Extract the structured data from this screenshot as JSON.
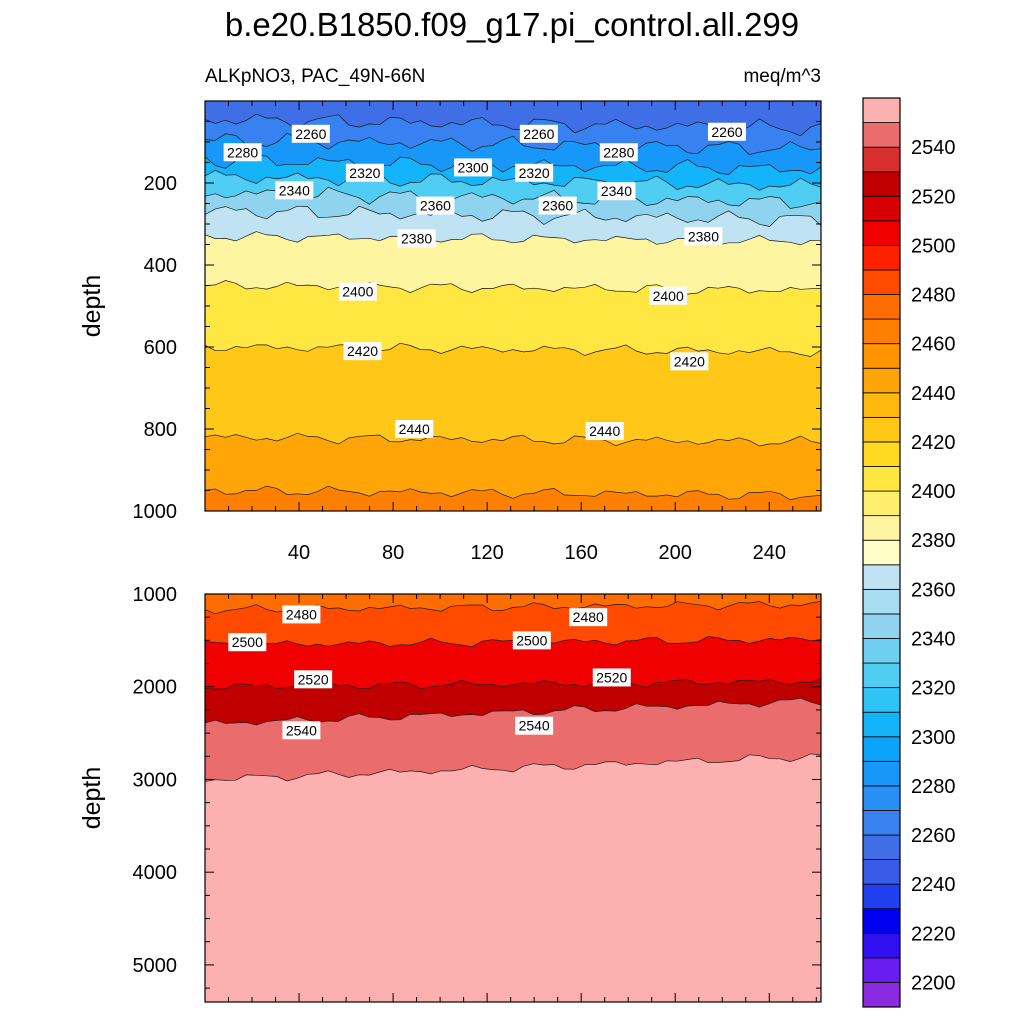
{
  "chart_data": {
    "type": "heatmap",
    "title": "b.e20.B1850.f09_g17.pi_control.all.299",
    "variable": "ALKpNO3, PAC_49N-66N",
    "units": "meq/m^3",
    "panels": [
      {
        "id": "upper",
        "ylabel": "depth",
        "ylim": [
          0,
          1000
        ],
        "y_reversed": true,
        "xlim": [
          0,
          262
        ],
        "xticks": [
          40,
          80,
          120,
          160,
          200,
          240
        ],
        "yticks": [
          200,
          400,
          600,
          800,
          1000
        ],
        "contours": [
          {
            "level": 2260,
            "depth": 45
          },
          {
            "level": 2280,
            "depth": 95
          },
          {
            "level": 2300,
            "depth": 145
          },
          {
            "level": 2320,
            "depth": 185
          },
          {
            "level": 2340,
            "depth": 225
          },
          {
            "level": 2360,
            "depth": 268
          },
          {
            "level": 2380,
            "depth": 330
          },
          {
            "level": 2400,
            "depth": 450
          },
          {
            "level": 2420,
            "depth": 600
          },
          {
            "level": 2440,
            "depth": 820
          },
          {
            "level": 2460,
            "depth": 950
          }
        ],
        "contour_labels": [
          {
            "x": 45,
            "depth": 80,
            "text": "2260"
          },
          {
            "x": 142,
            "depth": 80,
            "text": "2260"
          },
          {
            "x": 222,
            "depth": 75,
            "text": "2260"
          },
          {
            "x": 16,
            "depth": 125,
            "text": "2280"
          },
          {
            "x": 176,
            "depth": 125,
            "text": "2280"
          },
          {
            "x": 114,
            "depth": 162,
            "text": "2300"
          },
          {
            "x": 68,
            "depth": 175,
            "text": "2320"
          },
          {
            "x": 140,
            "depth": 175,
            "text": "2320"
          },
          {
            "x": 38,
            "depth": 218,
            "text": "2340"
          },
          {
            "x": 175,
            "depth": 220,
            "text": "2340"
          },
          {
            "x": 98,
            "depth": 255,
            "text": "2360"
          },
          {
            "x": 150,
            "depth": 255,
            "text": "2360"
          },
          {
            "x": 90,
            "depth": 335,
            "text": "2380"
          },
          {
            "x": 212,
            "depth": 330,
            "text": "2380"
          },
          {
            "x": 65,
            "depth": 465,
            "text": "2400"
          },
          {
            "x": 197,
            "depth": 475,
            "text": "2400"
          },
          {
            "x": 67,
            "depth": 610,
            "text": "2420"
          },
          {
            "x": 206,
            "depth": 635,
            "text": "2420"
          },
          {
            "x": 89,
            "depth": 800,
            "text": "2440"
          },
          {
            "x": 170,
            "depth": 805,
            "text": "2440"
          }
        ]
      },
      {
        "id": "lower",
        "ylabel": "depth",
        "ylim": [
          1000,
          5400
        ],
        "y_reversed": true,
        "xlim": [
          0,
          262
        ],
        "yticks": [
          1000,
          2000,
          3000,
          4000,
          5000
        ],
        "contours": [
          {
            "level": 2480,
            "depth": 1170
          },
          {
            "level": 2500,
            "depth": 1550
          },
          {
            "level": 2520,
            "depth": 2000
          },
          {
            "level": 2540,
            "depth": 2400
          },
          {
            "level": 2550,
            "depth": 3000
          }
        ],
        "contour_labels": [
          {
            "x": 41,
            "depth": 1220,
            "text": "2480"
          },
          {
            "x": 163,
            "depth": 1250,
            "text": "2480"
          },
          {
            "x": 18,
            "depth": 1520,
            "text": "2500"
          },
          {
            "x": 139,
            "depth": 1500,
            "text": "2500"
          },
          {
            "x": 46,
            "depth": 1920,
            "text": "2520"
          },
          {
            "x": 173,
            "depth": 1900,
            "text": "2520"
          },
          {
            "x": 41,
            "depth": 2470,
            "text": "2540"
          },
          {
            "x": 140,
            "depth": 2420,
            "text": "2540"
          }
        ]
      }
    ],
    "colorbar": {
      "levels": [
        2200,
        2210,
        2220,
        2230,
        2240,
        2250,
        2260,
        2270,
        2280,
        2290,
        2300,
        2310,
        2320,
        2330,
        2340,
        2350,
        2360,
        2370,
        2380,
        2390,
        2400,
        2410,
        2420,
        2430,
        2440,
        2450,
        2460,
        2470,
        2480,
        2490,
        2500,
        2510,
        2520,
        2530,
        2540,
        2550
      ],
      "tick_labels": [
        "2200",
        "2220",
        "2240",
        "2260",
        "2280",
        "2300",
        "2320",
        "2340",
        "2360",
        "2380",
        "2400",
        "2420",
        "2440",
        "2460",
        "2480",
        "2500",
        "2520",
        "2540"
      ],
      "colors": [
        "#8a2be2",
        "#6a1cf0",
        "#3010f0",
        "#0000f0",
        "#2040f0",
        "#3a5ae8",
        "#3f6ee6",
        "#3782f0",
        "#2890f5",
        "#1798f8",
        "#0aa5fa",
        "#14b4fa",
        "#30c3f5",
        "#50cdf3",
        "#6fcff0",
        "#8fd3ef",
        "#a8dcf0",
        "#bfe3f2",
        "#fffdc8",
        "#fff4a0",
        "#ffee70",
        "#ffe640",
        "#ffd820",
        "#ffc818",
        "#ffb80e",
        "#ffa508",
        "#ff9300",
        "#ff8000",
        "#ff6c00",
        "#ff4a00",
        "#ff2000",
        "#f00000",
        "#d80000",
        "#c00000",
        "#d83030",
        "#ea6c6c",
        "#fdb0b0"
      ]
    }
  }
}
